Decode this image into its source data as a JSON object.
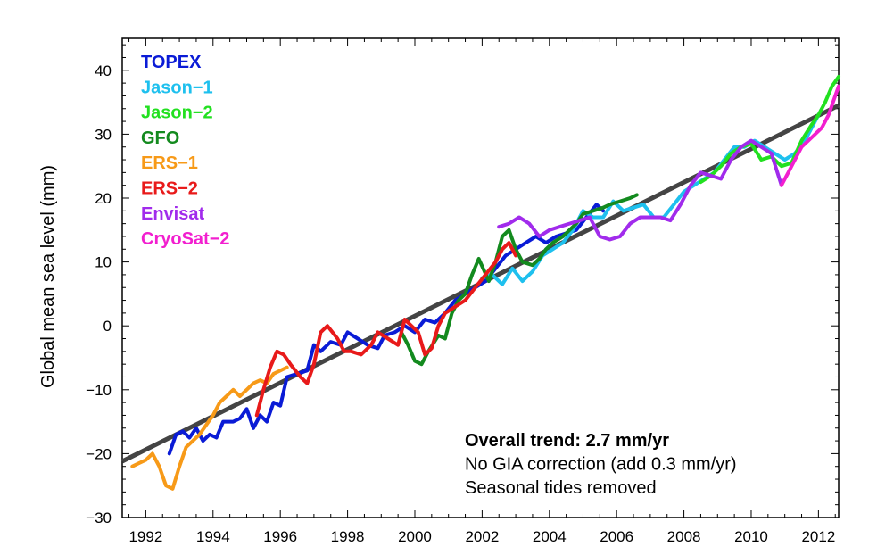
{
  "chart_data": {
    "type": "line",
    "title": "",
    "xlabel": "",
    "ylabel": "Global mean sea level (mm)",
    "xlim": [
      1991.3,
      2012.6
    ],
    "ylim": [
      -30,
      45
    ],
    "x_ticks": [
      1992,
      1994,
      1996,
      1998,
      2000,
      2002,
      2004,
      2006,
      2008,
      2010,
      2012
    ],
    "y_ticks": [
      -30,
      -20,
      -10,
      0,
      10,
      20,
      30,
      40
    ],
    "legend_position": "top-left",
    "grid": false,
    "trend": {
      "x": [
        1991.3,
        2012.6
      ],
      "y": [
        -21.2,
        34.5
      ],
      "color": "#444444"
    },
    "annotations": [
      "Overall trend: 2.7 mm/yr",
      "No GIA correction (add 0.3 mm/yr)",
      "Seasonal tides removed"
    ],
    "series": [
      {
        "name": "TOPEX",
        "color": "#0a1bd6",
        "x": [
          1992.7,
          1992.9,
          1993.1,
          1993.3,
          1993.5,
          1993.7,
          1993.9,
          1994.1,
          1994.3,
          1994.6,
          1994.8,
          1995.0,
          1995.2,
          1995.4,
          1995.6,
          1995.8,
          1996.0,
          1996.2,
          1996.5,
          1996.8,
          1997.0,
          1997.2,
          1997.5,
          1997.8,
          1998.0,
          1998.3,
          1998.6,
          1998.9,
          1999.1,
          1999.4,
          1999.7,
          2000.0,
          2000.3,
          2000.6,
          2000.9,
          2001.2,
          2001.5,
          2001.8,
          2002.1,
          2002.4,
          2002.7,
          2003.0,
          2003.3,
          2003.6,
          2003.9,
          2004.2,
          2004.5,
          2004.8,
          2005.1,
          2005.4,
          2005.6
        ],
        "y": [
          -20,
          -17,
          -16.5,
          -17.5,
          -16,
          -18,
          -17,
          -17.5,
          -15,
          -15,
          -14.5,
          -13,
          -16,
          -14,
          -15,
          -12,
          -12.5,
          -8,
          -7.5,
          -7,
          -3,
          -4,
          -2.5,
          -3,
          -1,
          -2,
          -3,
          -3.5,
          -1.5,
          -1,
          0,
          -1,
          1,
          0.5,
          2,
          4,
          5,
          6,
          7,
          9,
          11,
          12,
          13,
          14,
          13,
          14,
          14.5,
          15,
          17,
          19,
          18
        ]
      },
      {
        "name": "Jason-1",
        "color": "#1ec0ee",
        "x": [
          2002.0,
          2002.3,
          2002.6,
          2002.9,
          2003.2,
          2003.5,
          2003.8,
          2004.1,
          2004.4,
          2004.7,
          2005.0,
          2005.3,
          2005.6,
          2005.9,
          2006.2,
          2006.5,
          2006.8,
          2007.1,
          2007.4,
          2007.7,
          2008.0,
          2008.3,
          2008.6,
          2008.9,
          2009.2,
          2009.5,
          2009.8,
          2010.1,
          2010.4,
          2010.7,
          2011.0,
          2011.3,
          2011.6,
          2011.9,
          2012.1
        ],
        "y": [
          7.5,
          8,
          6.5,
          9,
          7,
          8.5,
          11,
          12,
          13,
          15,
          18,
          17,
          17,
          19.5,
          18,
          18.5,
          19,
          17,
          17,
          19,
          21,
          22,
          23,
          24,
          26,
          28,
          28,
          29,
          28,
          27,
          26,
          27,
          29,
          32,
          34
        ]
      },
      {
        "name": "Jason-2",
        "color": "#22e020",
        "x": [
          2008.5,
          2008.8,
          2009.1,
          2009.4,
          2009.7,
          2010.0,
          2010.3,
          2010.6,
          2010.9,
          2011.2,
          2011.5,
          2011.8,
          2012.0,
          2012.2,
          2012.4,
          2012.6
        ],
        "y": [
          22.5,
          23.5,
          25,
          27,
          28,
          28.5,
          26,
          26.5,
          25,
          25.5,
          29,
          31.5,
          33,
          35,
          37.5,
          39
        ]
      },
      {
        "name": "GFO",
        "color": "#138a1e",
        "x": [
          1999.6,
          1999.8,
          2000.0,
          2000.2,
          2000.4,
          2000.7,
          2000.9,
          2001.1,
          2001.3,
          2001.5,
          2001.7,
          2001.9,
          2002.2,
          2002.4,
          2002.6,
          2002.8,
          2003.0,
          2003.2,
          2003.5,
          2003.7,
          2003.9,
          2004.1,
          2004.4,
          2004.6,
          2004.8,
          2005.0,
          2005.3,
          2005.6,
          2005.8,
          2006.1,
          2006.4,
          2006.6
        ],
        "y": [
          -1,
          -3,
          -5.5,
          -6,
          -4,
          -1.5,
          -2,
          2,
          4,
          5,
          8,
          10.5,
          7,
          10,
          14,
          15,
          12,
          10,
          9.5,
          10.5,
          12,
          13,
          14,
          15,
          16,
          17.5,
          18,
          18.5,
          19,
          19.5,
          20,
          20.5
        ]
      },
      {
        "name": "ERS-1",
        "color": "#f79a18",
        "x": [
          1991.6,
          1991.8,
          1992.0,
          1992.2,
          1992.4,
          1992.6,
          1992.8,
          1993.0,
          1993.2,
          1993.4,
          1993.6,
          1993.8,
          1994.0,
          1994.2,
          1994.4,
          1994.6,
          1994.8,
          1995.0,
          1995.2,
          1995.4,
          1995.6,
          1995.8,
          1996.0,
          1996.2
        ],
        "y": [
          -22,
          -21.5,
          -21,
          -20,
          -22,
          -25,
          -25.5,
          -22,
          -19,
          -18,
          -17,
          -15.5,
          -14,
          -12,
          -11,
          -10,
          -11,
          -10,
          -9,
          -8.5,
          -9,
          -7.5,
          -7,
          -6.5
        ]
      },
      {
        "name": "ERS-2",
        "color": "#e81a1a",
        "x": [
          1995.3,
          1995.5,
          1995.7,
          1995.9,
          1996.1,
          1996.3,
          1996.6,
          1996.8,
          1997.0,
          1997.2,
          1997.4,
          1997.7,
          1997.9,
          1998.1,
          1998.4,
          1998.7,
          1998.9,
          1999.2,
          1999.5,
          1999.7,
          1999.9,
          2000.1,
          2000.3,
          2000.5,
          2000.7,
          2000.9,
          2001.2,
          2001.5,
          2001.8,
          2002.1,
          2002.4,
          2002.6,
          2002.8,
          2003.0
        ],
        "y": [
          -14,
          -10,
          -6.5,
          -4,
          -4.5,
          -6,
          -8,
          -9,
          -6,
          -1,
          0,
          -2,
          -4,
          -4,
          -4.5,
          -3,
          -1,
          -2,
          -3,
          1,
          0,
          -1,
          -4.5,
          -3.5,
          0,
          2,
          3,
          4,
          6,
          8,
          10,
          12,
          13,
          11
        ]
      },
      {
        "name": "Envisat",
        "color": "#a12bec",
        "x": [
          2002.5,
          2002.8,
          2003.1,
          2003.4,
          2003.7,
          2004.0,
          2004.3,
          2004.6,
          2004.9,
          2005.2,
          2005.5,
          2005.8,
          2006.1,
          2006.4,
          2006.7,
          2007.0,
          2007.3,
          2007.6,
          2007.9,
          2008.2,
          2008.5,
          2008.8,
          2009.1,
          2009.4,
          2009.7,
          2010.0,
          2010.3,
          2010.6,
          2010.9
        ],
        "y": [
          15.5,
          16,
          17,
          16,
          14,
          15,
          15.5,
          16,
          16.5,
          17,
          14,
          13.5,
          14,
          16,
          17,
          17,
          17,
          16.5,
          19,
          22,
          24,
          23.5,
          23,
          26,
          28,
          29,
          28,
          27,
          22
        ]
      },
      {
        "name": "CryoSat-2",
        "color": "#f21fcf",
        "x": [
          2010.9,
          2011.1,
          2011.3,
          2011.5,
          2011.7,
          2011.9,
          2012.1,
          2012.3,
          2012.5,
          2012.6
        ],
        "y": [
          22,
          24,
          26,
          28,
          29,
          30,
          31,
          33,
          36,
          37.5
        ]
      }
    ]
  }
}
